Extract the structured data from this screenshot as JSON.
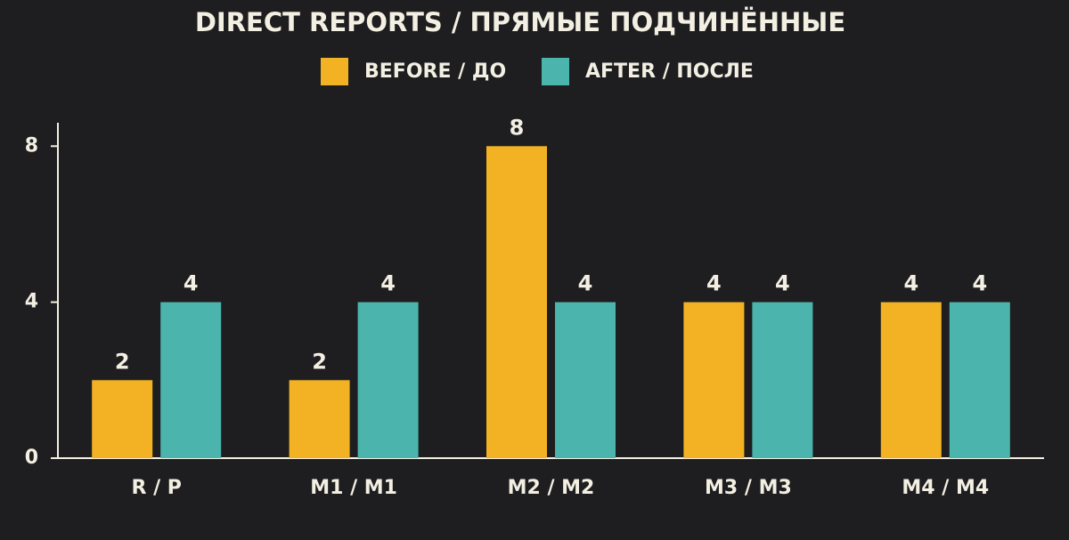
{
  "chart_data": {
    "type": "bar",
    "title": "DIRECT REPORTS / ПРЯМЫЕ ПОДЧИНЁННЫЕ",
    "categories": [
      "R / P",
      "M1 / M1",
      "M2 / M2",
      "M3 / M3",
      "M4 / M4"
    ],
    "series": [
      {
        "name": "BEFORE / ДО",
        "color": "#f2b224",
        "values": [
          2,
          2,
          8,
          4,
          4
        ]
      },
      {
        "name": "AFTER / ПОСЛЕ",
        "color": "#4ab4ad",
        "values": [
          4,
          4,
          4,
          4,
          4
        ]
      }
    ],
    "ylim": [
      0,
      8.6
    ],
    "yticks": [
      0,
      4,
      8
    ],
    "grid": false
  }
}
